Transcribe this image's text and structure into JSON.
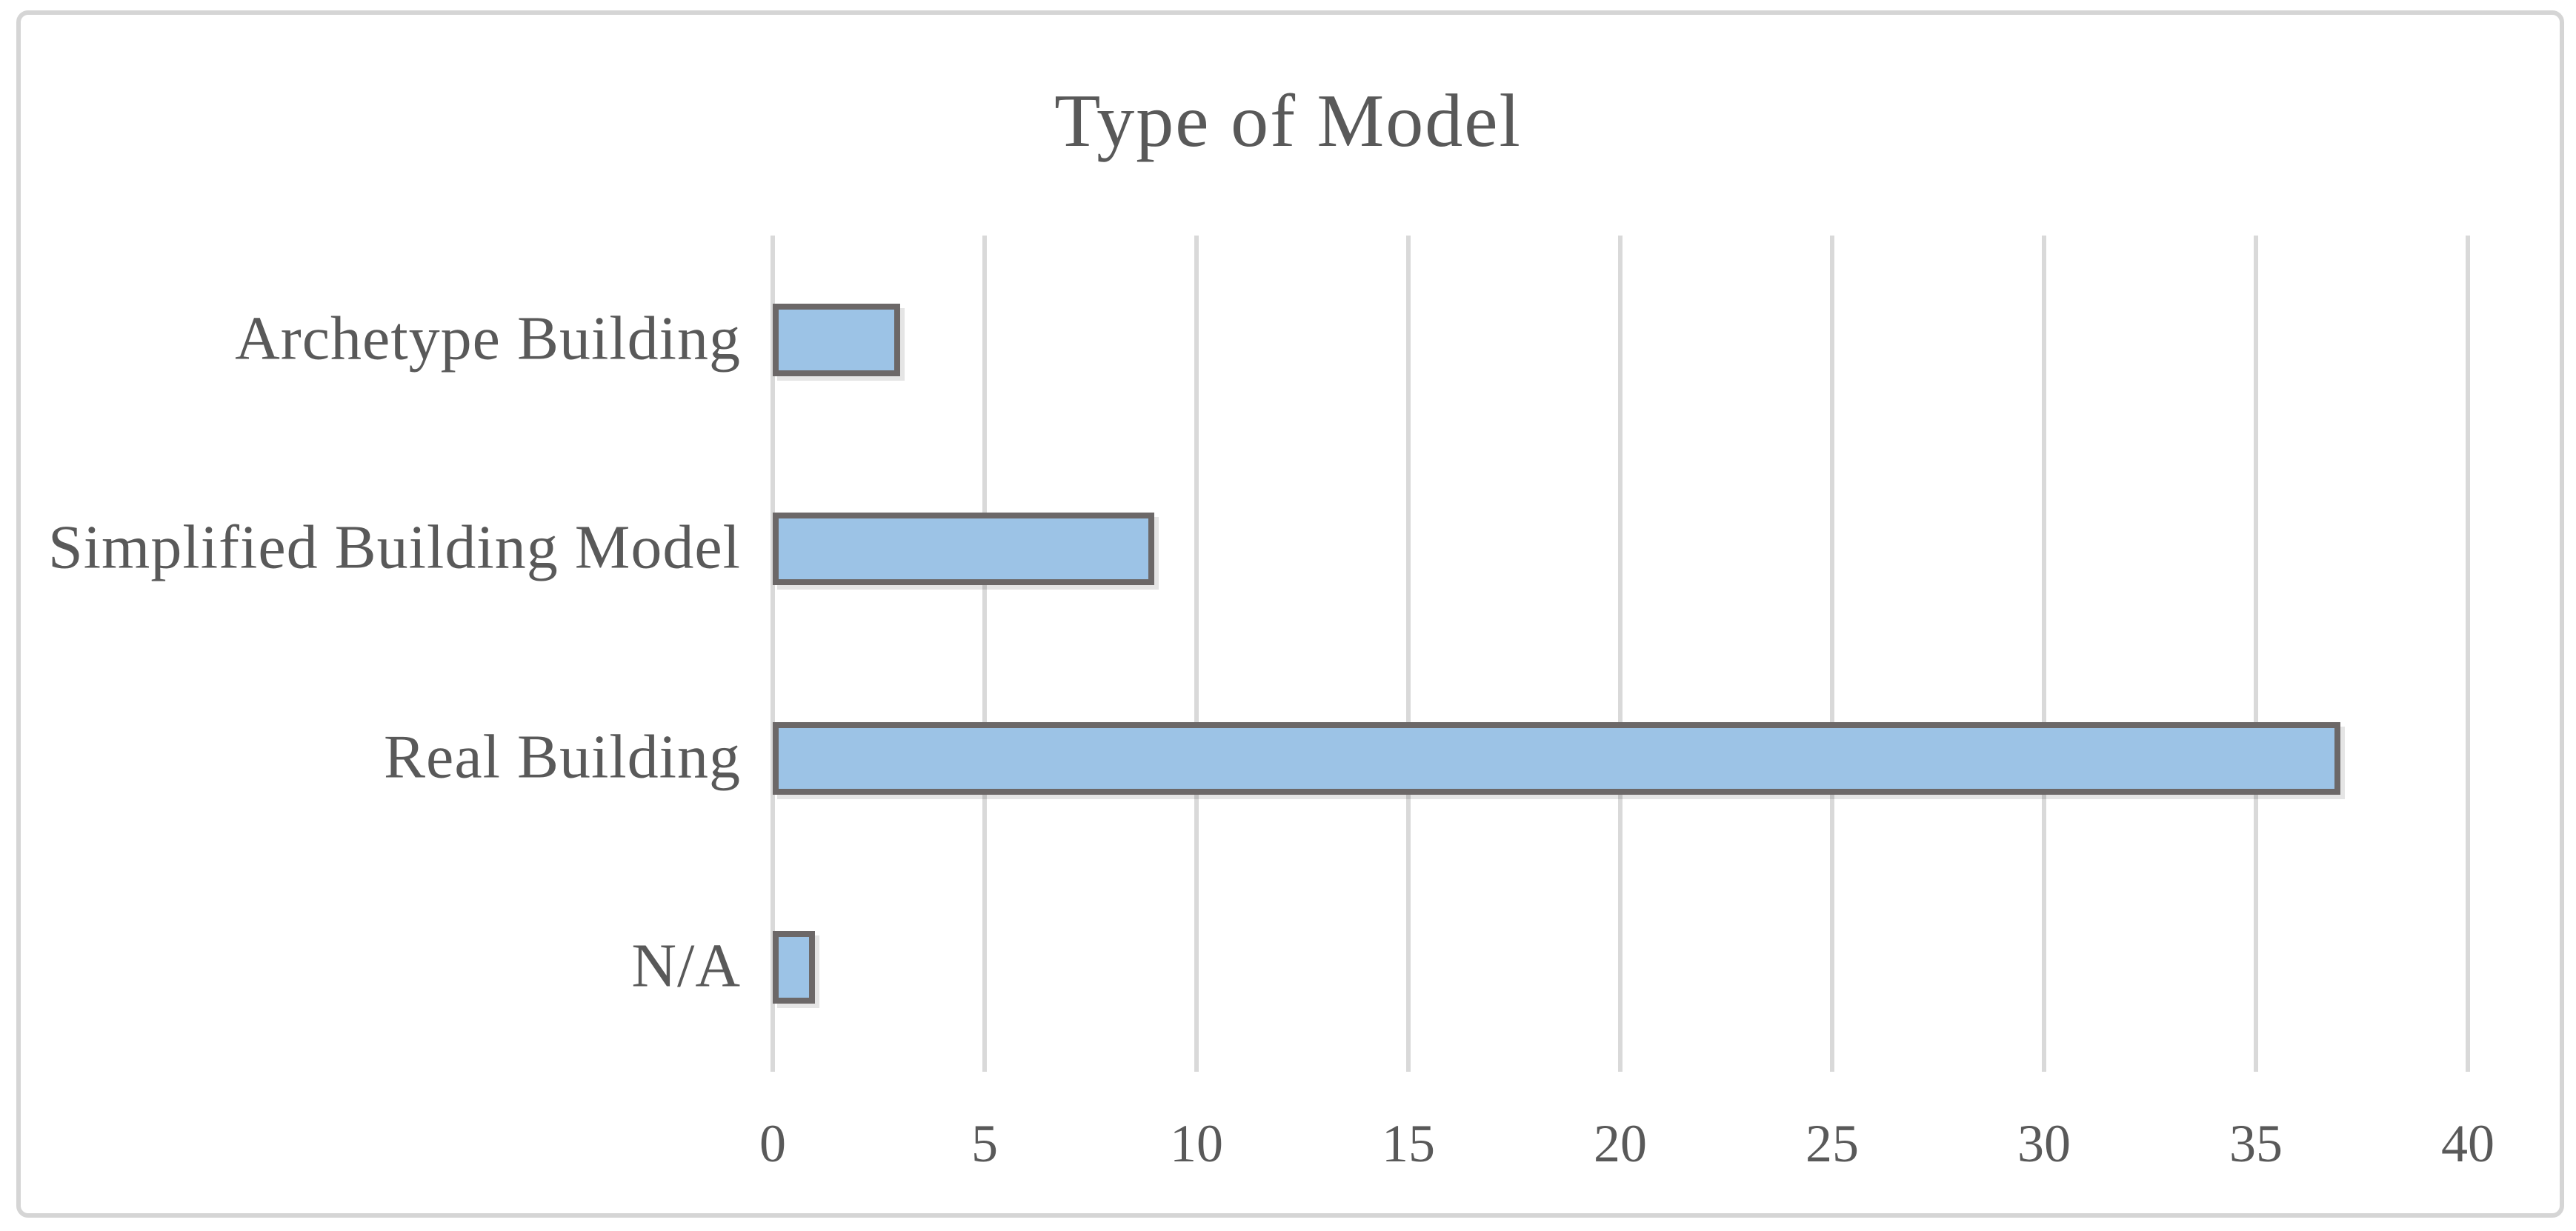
{
  "chart_data": {
    "type": "bar",
    "orientation": "horizontal",
    "title": "Type of Model",
    "categories": [
      "Archetype Building",
      "Simplified Building Model",
      "Real Building",
      "N/A"
    ],
    "values": [
      3,
      9,
      37,
      1
    ],
    "xlabel": "",
    "ylabel": "",
    "xlim": [
      0,
      40
    ],
    "xticks": [
      0,
      5,
      10,
      15,
      20,
      25,
      30,
      35,
      40
    ],
    "grid": "vertical",
    "legend": "none",
    "colors": {
      "bar_fill": "#9CC3E6",
      "bar_border": "#6C6868",
      "gridline": "#D9D9D9",
      "frame_border": "#D5D5D5",
      "text": "#595959",
      "background": "#FFFFFF"
    }
  }
}
